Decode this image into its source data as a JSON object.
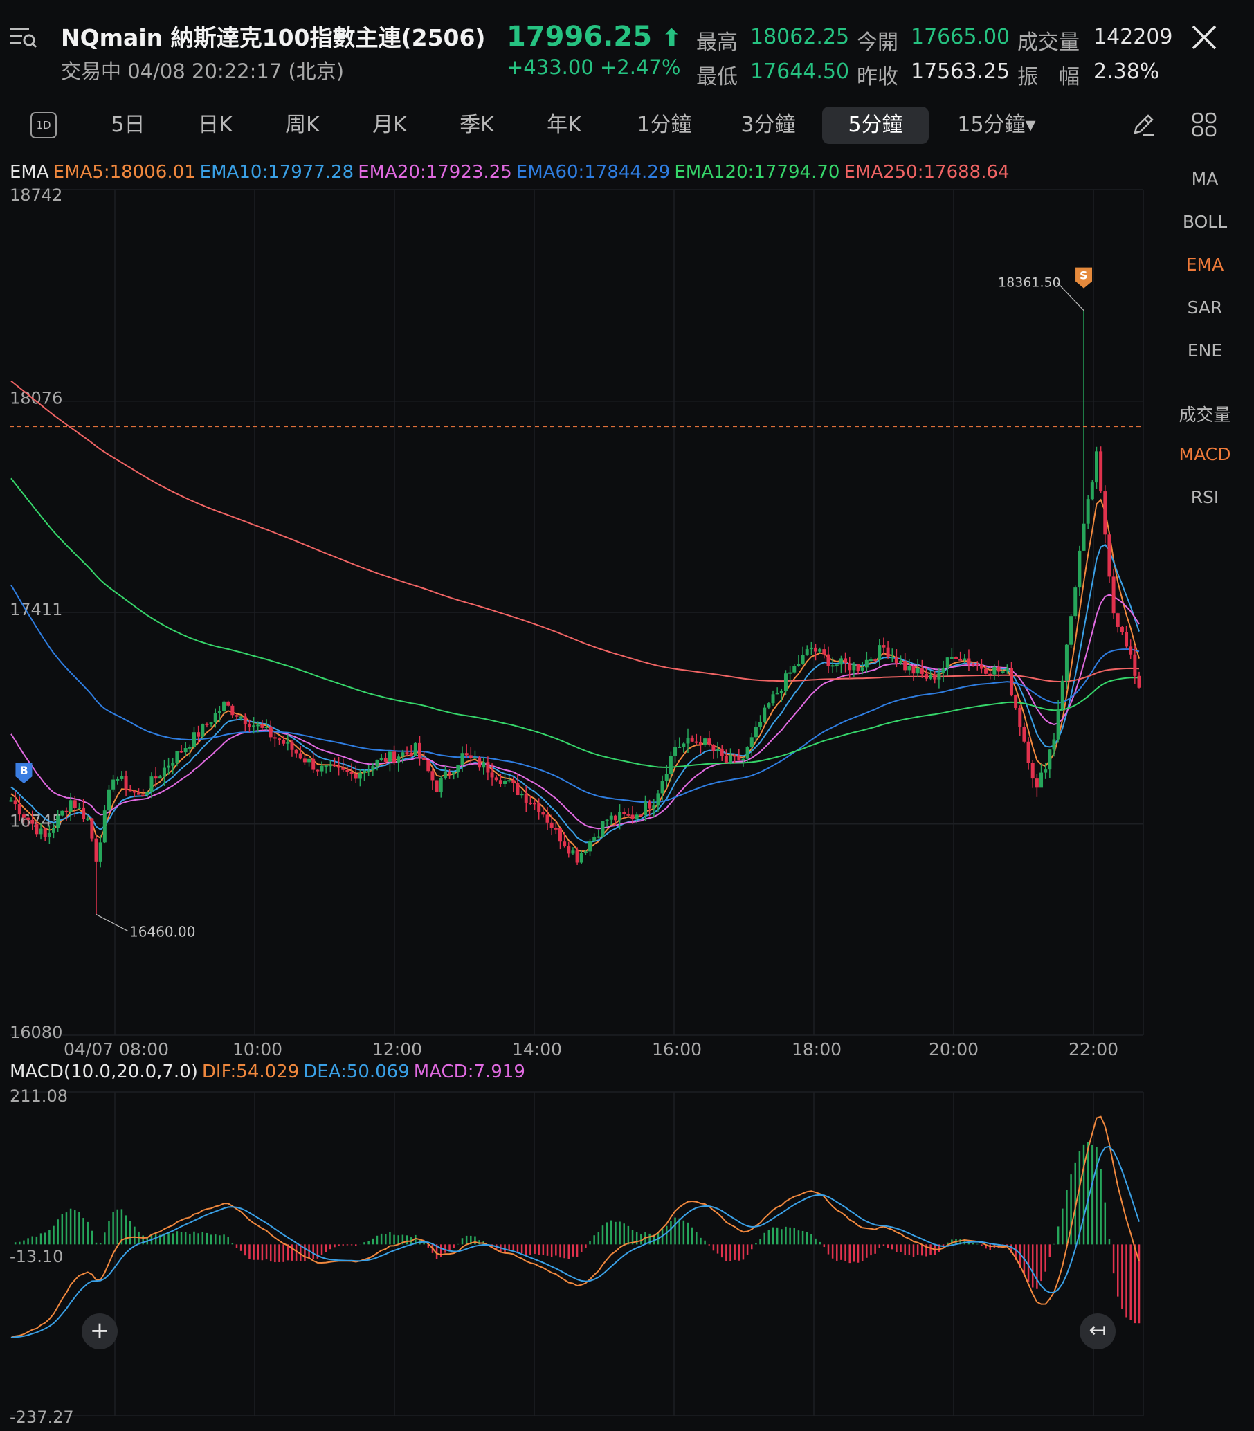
{
  "header": {
    "title": "NQmain  納斯達克100指數主連(2506)",
    "status": "交易中 04/08 20:22:17 (北京)",
    "price": "17996.25",
    "price_arrow": "⬆",
    "change": "+433.00 +2.47%",
    "stats": [
      {
        "label": "最高",
        "value": "18062.25",
        "color": "#26c281"
      },
      {
        "label": "今開",
        "value": "17665.00",
        "color": "#26c281"
      },
      {
        "label": "成交量",
        "value": "142209",
        "color": "#e6e6e6"
      },
      {
        "label": "最低",
        "value": "17644.50",
        "color": "#26c281"
      },
      {
        "label": "昨收",
        "value": "17563.25",
        "color": "#e6e6e6"
      },
      {
        "label": "振　幅",
        "value": "2.38%",
        "color": "#e6e6e6"
      }
    ],
    "menu_icon": "menu-list-icon",
    "close_icon": "close-icon"
  },
  "tabs": {
    "icon_label": "1D",
    "items": [
      "5日",
      "日K",
      "周K",
      "月K",
      "季K",
      "年K",
      "1分鐘",
      "3分鐘",
      "5分鐘",
      "15分鐘▾"
    ],
    "active": "5分鐘",
    "draw_icon": "pencil-icon",
    "grid_icon": "grid-icon"
  },
  "ema_legend": {
    "prefix": "EMA",
    "items": [
      {
        "text": "EMA5:18006.01",
        "color": "#f0883e"
      },
      {
        "text": "EMA10:17977.28",
        "color": "#3aa0e6"
      },
      {
        "text": "EMA20:17923.25",
        "color": "#e06ae0"
      },
      {
        "text": "EMA60:17844.29",
        "color": "#2f7de0"
      },
      {
        "text": "EMA120:17794.70",
        "color": "#36d56a"
      },
      {
        "text": "EMA250:17688.64",
        "color": "#f06464"
      }
    ]
  },
  "macd_legend": {
    "prefix": "MACD(10.0,20.0,7.0)",
    "items": [
      {
        "text": "DIF:54.029",
        "color": "#f0883e"
      },
      {
        "text": "DEA:50.069",
        "color": "#3aa0e6"
      },
      {
        "text": "MACD:7.919",
        "color": "#e06ae0"
      }
    ]
  },
  "side_panel": {
    "main": [
      "MA",
      "BOLL",
      "EMA",
      "SAR",
      "ENE"
    ],
    "sub": [
      "成交量",
      "MACD",
      "RSI"
    ],
    "active_main": "EMA",
    "active_sub": "MACD"
  },
  "colors": {
    "up": "#26a65b",
    "down": "#e0324d",
    "grid": "#1d1f23",
    "ref_line": "#e0703a"
  },
  "chart_data": {
    "type": "candlestick",
    "interval": "5分鐘",
    "price_axis": {
      "ticks": [
        "18742",
        "18076",
        "17411",
        "16745",
        "16080"
      ],
      "ylim": [
        16080,
        18742
      ]
    },
    "time_axis": [
      "04/07 08:00",
      "10:00",
      "12:00",
      "14:00",
      "16:00",
      "18:00",
      "20:00",
      "22:00"
    ],
    "annotations": {
      "high_label": "18361.50",
      "low_label": "16460.00",
      "buy_marker": "B",
      "sell_marker": "S",
      "current_price_line": 17996.25
    },
    "ema_series": [
      {
        "name": "EMA5",
        "color": "#f0883e"
      },
      {
        "name": "EMA10",
        "color": "#3aa0e6"
      },
      {
        "name": "EMA20",
        "color": "#e06ae0"
      },
      {
        "name": "EMA60",
        "color": "#2f7de0"
      },
      {
        "name": "EMA120",
        "color": "#36d56a"
      },
      {
        "name": "EMA250",
        "color": "#f06464"
      }
    ],
    "macd_axis": {
      "ticks": [
        "211.08",
        "-13.10",
        "-237.27"
      ],
      "ylim": [
        -237.27,
        211.08
      ]
    }
  },
  "buttons": {
    "crosshair_icon": "+",
    "back_icon": "↤"
  }
}
